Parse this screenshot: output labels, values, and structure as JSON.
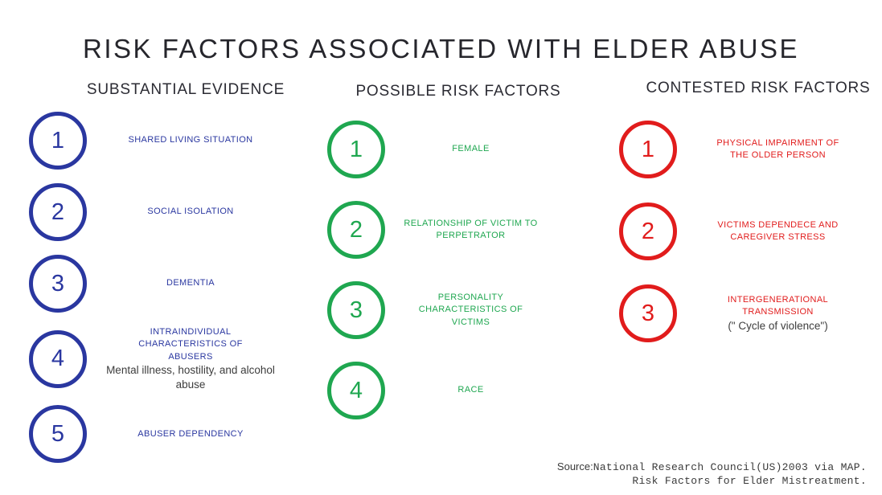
{
  "title": "RISK FACTORS ASSOCIATED WITH ELDER ABUSE",
  "colors": {
    "substantial_blue": "#2A37A0",
    "possible_green": "#1FA750",
    "contested_red": "#E11C1C",
    "heading_dark": "#2b2b33",
    "subtext_gray": "#3d3d3d"
  },
  "columns": [
    {
      "header": "SUBSTANTIAL EVIDENCE",
      "color": "#2A37A0",
      "items": [
        {
          "number": "1",
          "label": "SHARED LIVING SITUATION"
        },
        {
          "number": "2",
          "label": "SOCIAL ISOLATION"
        },
        {
          "number": "3",
          "label": "DEMENTIA"
        },
        {
          "number": "4",
          "label": "INTRAINDIVIDUAL CHARACTERISTICS OF ABUSERS",
          "sublabel": "Mental illness, hostility, and alcohol abuse"
        },
        {
          "number": "5",
          "label": "ABUSER DEPENDENCY"
        }
      ]
    },
    {
      "header": "POSSIBLE RISK FACTORS",
      "color": "#1FA750",
      "items": [
        {
          "number": "1",
          "label": "FEMALE"
        },
        {
          "number": "2",
          "label": "RELATIONSHIP OF VICTIM TO PERPETRATOR"
        },
        {
          "number": "3",
          "label": "PERSONALITY CHARACTERISTICS OF VICTIMS"
        },
        {
          "number": "4",
          "label": "RACE"
        }
      ]
    },
    {
      "header": "CONTESTED RISK FACTORS",
      "color": "#E11C1C",
      "items": [
        {
          "number": "1",
          "label": "PHYSICAL IMPAIRMENT OF THE OLDER PERSON"
        },
        {
          "number": "2",
          "label": "VICTIMS DEPENDECE AND CAREGIVER STRESS"
        },
        {
          "number": "3",
          "label": "INTERGENERATIONAL TRANSMISSION",
          "sublabel": "(\" Cycle of violence\")"
        }
      ]
    }
  ],
  "source": {
    "prefix": "Source:",
    "line1": "National Research Council(US)2003 via MAP.",
    "line2": "Risk Factors for Elder Mistreatment."
  }
}
